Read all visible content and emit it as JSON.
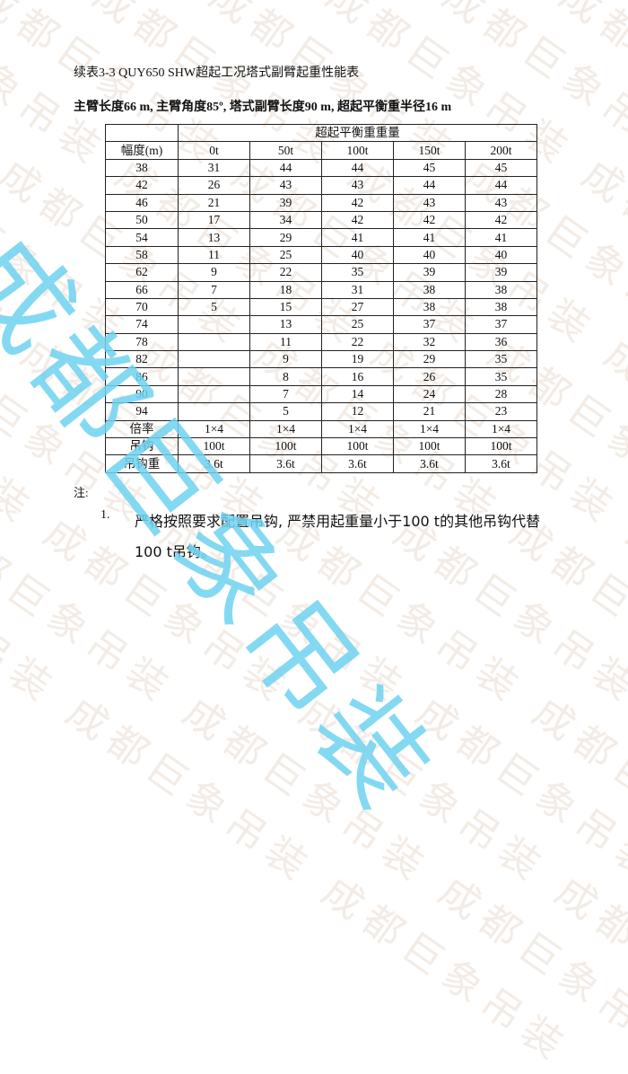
{
  "watermark": "成都巨象吊装",
  "document": {
    "title": "续表3-3 QUY650 SHW超起工况塔式副臂起重性能表",
    "subtitle": "主臂长度66 m, 主臂角度85º, 塔式副臂长度90 m, 超起平衡重半径16 m"
  },
  "table": {
    "group_header": "超起平衡重重量",
    "columns": [
      "幅度(m)",
      "0t",
      "50t",
      "100t",
      "150t",
      "200t"
    ],
    "rows": [
      [
        "38",
        "31",
        "44",
        "44",
        "45",
        "45"
      ],
      [
        "42",
        "26",
        "43",
        "43",
        "44",
        "44"
      ],
      [
        "46",
        "21",
        "39",
        "42",
        "43",
        "43"
      ],
      [
        "50",
        "17",
        "34",
        "42",
        "42",
        "42"
      ],
      [
        "54",
        "13",
        "29",
        "41",
        "41",
        "41"
      ],
      [
        "58",
        "11",
        "25",
        "40",
        "40",
        "40"
      ],
      [
        "62",
        "9",
        "22",
        "35",
        "39",
        "39"
      ],
      [
        "66",
        "7",
        "18",
        "31",
        "38",
        "38"
      ],
      [
        "70",
        "5",
        "15",
        "27",
        "38",
        "38"
      ],
      [
        "74",
        "",
        "13",
        "25",
        "37",
        "37"
      ],
      [
        "78",
        "",
        "11",
        "22",
        "32",
        "36"
      ],
      [
        "82",
        "",
        "9",
        "19",
        "29",
        "35"
      ],
      [
        "86",
        "",
        "8",
        "16",
        "26",
        "35"
      ],
      [
        "90",
        "",
        "7",
        "14",
        "24",
        "28"
      ],
      [
        "94",
        "",
        "5",
        "12",
        "21",
        "23"
      ]
    ],
    "footer_rows": [
      [
        "倍率",
        "1×4",
        "1×4",
        "1×4",
        "1×4",
        "1×4"
      ],
      [
        "吊钩",
        "100t",
        "100t",
        "100t",
        "100t",
        "100t"
      ],
      [
        "吊钩重",
        "3.6t",
        "3.6t",
        "3.6t",
        "3.6t",
        "3.6t"
      ]
    ]
  },
  "notes": {
    "label": "注:",
    "items": [
      {
        "number": "1.",
        "text": "严格按照要求配置吊钩, 严禁用起重量小于100 t的其他吊钩代替100 t吊钩。"
      }
    ]
  }
}
